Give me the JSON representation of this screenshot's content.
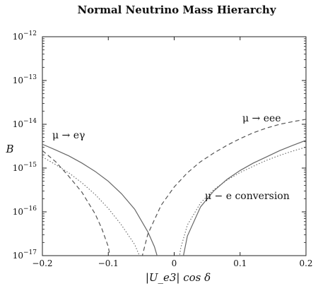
{
  "chart_data": {
    "type": "line",
    "title": "Normal Neutrino Mass Hierarchy",
    "xlabel": "|U_e3| cos δ",
    "ylabel": "B",
    "xlim": [
      -0.2,
      0.2
    ],
    "ylim_log10": [
      -17,
      -12
    ],
    "y_scale": "log",
    "grid": false,
    "x_ticks": [
      {
        "value": -0.2,
        "label": "−0.2"
      },
      {
        "value": -0.1,
        "label": "−0.1"
      },
      {
        "value": 0,
        "label": "0"
      },
      {
        "value": 0.1,
        "label": "0.1"
      },
      {
        "value": 0.2,
        "label": "0.2"
      }
    ],
    "y_ticks": [
      {
        "exp": -17,
        "base": "10",
        "sup": "−17"
      },
      {
        "exp": -16,
        "base": "10",
        "sup": "−16"
      },
      {
        "exp": -15,
        "base": "10",
        "sup": "−15"
      },
      {
        "exp": -14,
        "base": "10",
        "sup": "−14"
      },
      {
        "exp": -13,
        "base": "10",
        "sup": "−13"
      },
      {
        "exp": -12,
        "base": "10",
        "sup": "−12"
      }
    ],
    "series": [
      {
        "name": "μ → eγ",
        "style": "solid",
        "color": "#666666",
        "x": [
          -0.2,
          -0.18,
          -0.16,
          -0.14,
          -0.12,
          -0.1,
          -0.08,
          -0.06,
          -0.04,
          -0.03,
          -0.02,
          -0.015,
          0.0,
          0.005,
          0.01,
          0.02,
          0.04,
          0.06,
          0.08,
          0.1,
          0.12,
          0.14,
          0.16,
          0.18,
          0.2
        ],
        "y": [
          3.5e-15,
          2.6e-15,
          1.9e-15,
          1.3e-15,
          8.4e-16,
          5e-16,
          2.6e-16,
          1.15e-16,
          3.5e-17,
          1.6e-17,
          5e-18,
          1e-18,
          null,
          1e-18,
          5e-18,
          2.8e-17,
          1.3e-16,
          3e-16,
          5.5e-16,
          8.8e-16,
          1.3e-15,
          1.8e-15,
          2.5e-15,
          3.3e-15,
          4.3e-15
        ]
      },
      {
        "name": "μ → eee",
        "style": "dashed",
        "color": "#555555",
        "x": [
          -0.2,
          -0.18,
          -0.16,
          -0.14,
          -0.12,
          -0.11,
          -0.1,
          -0.095,
          -0.09,
          -0.08,
          -0.07,
          -0.06,
          -0.05,
          -0.04,
          -0.02,
          0.0,
          0.02,
          0.04,
          0.06,
          0.08,
          0.1,
          0.12,
          0.14,
          0.16,
          0.18,
          0.2
        ],
        "y": [
          2.5e-15,
          1.4e-15,
          6.5e-16,
          2.8e-16,
          9e-17,
          4.2e-17,
          1.6e-17,
          6e-18,
          1e-18,
          null,
          null,
          1e-18,
          8e-18,
          3.1e-17,
          1.4e-16,
          3.7e-16,
          7.8e-16,
          1.4e-15,
          2.2e-15,
          3.3e-15,
          4.7e-15,
          6.4e-15,
          8.2e-15,
          1e-14,
          1.15e-14,
          1.3e-14
        ]
      },
      {
        "name": "μ − e conversion",
        "style": "dotted",
        "color": "#666666",
        "x": [
          -0.2,
          -0.18,
          -0.16,
          -0.14,
          -0.12,
          -0.1,
          -0.08,
          -0.06,
          -0.05,
          -0.04,
          -0.035,
          -0.03,
          0.0,
          0.0,
          0.005,
          0.01,
          0.02,
          0.04,
          0.06,
          0.08,
          0.1,
          0.12,
          0.14,
          0.16,
          0.18,
          0.2
        ],
        "y": [
          1.8e-15,
          1.2e-15,
          7.8e-16,
          4.6e-16,
          2.5e-16,
          1.2e-16,
          5e-17,
          1.8e-17,
          8e-18,
          3e-18,
          1e-18,
          null,
          null,
          1e-18,
          5e-18,
          1.5e-17,
          5e-17,
          1.6e-16,
          3.2e-16,
          5.3e-16,
          7.9e-16,
          1.1e-15,
          1.5e-15,
          1.95e-15,
          2.45e-15,
          3e-15
        ]
      }
    ],
    "annotations": {
      "meg": "μ → eγ",
      "eee": "μ → eee",
      "conv": "μ − e conversion"
    },
    "legend": "none"
  }
}
